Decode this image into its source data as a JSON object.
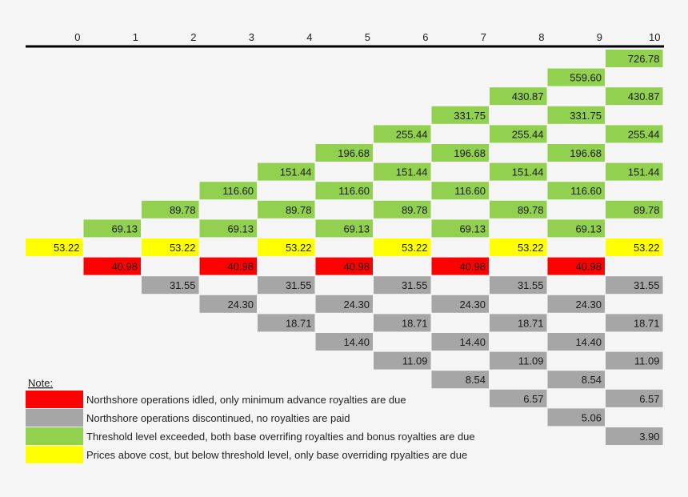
{
  "chart_data": {
    "type": "table",
    "periods": [
      0,
      1,
      2,
      3,
      4,
      5,
      6,
      7,
      8,
      9,
      10
    ],
    "colors": {
      "green": "#92d050",
      "yellow": "#ffff00",
      "red": "#ff0000",
      "gray": "#a6a6a6"
    },
    "rows": [
      {
        "cells": [
          {
            "period": 10,
            "value": "726.78",
            "status": "green"
          }
        ]
      },
      {
        "cells": [
          {
            "period": 9,
            "value": "559.60",
            "status": "green"
          }
        ]
      },
      {
        "cells": [
          {
            "period": 8,
            "value": "430.87",
            "status": "green"
          },
          {
            "period": 10,
            "value": "430.87",
            "status": "green"
          }
        ]
      },
      {
        "cells": [
          {
            "period": 7,
            "value": "331.75",
            "status": "green"
          },
          {
            "period": 9,
            "value": "331.75",
            "status": "green"
          }
        ]
      },
      {
        "cells": [
          {
            "period": 6,
            "value": "255.44",
            "status": "green"
          },
          {
            "period": 8,
            "value": "255.44",
            "status": "green"
          },
          {
            "period": 10,
            "value": "255.44",
            "status": "green"
          }
        ]
      },
      {
        "cells": [
          {
            "period": 5,
            "value": "196.68",
            "status": "green"
          },
          {
            "period": 7,
            "value": "196.68",
            "status": "green"
          },
          {
            "period": 9,
            "value": "196.68",
            "status": "green"
          }
        ]
      },
      {
        "cells": [
          {
            "period": 4,
            "value": "151.44",
            "status": "green"
          },
          {
            "period": 6,
            "value": "151.44",
            "status": "green"
          },
          {
            "period": 8,
            "value": "151.44",
            "status": "green"
          },
          {
            "period": 10,
            "value": "151.44",
            "status": "green"
          }
        ]
      },
      {
        "cells": [
          {
            "period": 3,
            "value": "116.60",
            "status": "green"
          },
          {
            "period": 5,
            "value": "116.60",
            "status": "green"
          },
          {
            "period": 7,
            "value": "116.60",
            "status": "green"
          },
          {
            "period": 9,
            "value": "116.60",
            "status": "green"
          }
        ]
      },
      {
        "cells": [
          {
            "period": 2,
            "value": "89.78",
            "status": "green"
          },
          {
            "period": 4,
            "value": "89.78",
            "status": "green"
          },
          {
            "period": 6,
            "value": "89.78",
            "status": "green"
          },
          {
            "period": 8,
            "value": "89.78",
            "status": "green"
          },
          {
            "period": 10,
            "value": "89.78",
            "status": "green"
          }
        ]
      },
      {
        "cells": [
          {
            "period": 1,
            "value": "69.13",
            "status": "green"
          },
          {
            "period": 3,
            "value": "69.13",
            "status": "green"
          },
          {
            "period": 5,
            "value": "69.13",
            "status": "green"
          },
          {
            "period": 7,
            "value": "69.13",
            "status": "green"
          },
          {
            "period": 9,
            "value": "69.13",
            "status": "green"
          }
        ]
      },
      {
        "cells": [
          {
            "period": 0,
            "value": "53.22",
            "status": "yellow"
          },
          {
            "period": 2,
            "value": "53.22",
            "status": "yellow"
          },
          {
            "period": 4,
            "value": "53.22",
            "status": "yellow"
          },
          {
            "period": 6,
            "value": "53.22",
            "status": "yellow"
          },
          {
            "period": 8,
            "value": "53.22",
            "status": "yellow"
          },
          {
            "period": 10,
            "value": "53.22",
            "status": "yellow"
          }
        ]
      },
      {
        "cells": [
          {
            "period": 1,
            "value": "40.98",
            "status": "red"
          },
          {
            "period": 3,
            "value": "40.98",
            "status": "red"
          },
          {
            "period": 5,
            "value": "40.98",
            "status": "red"
          },
          {
            "period": 7,
            "value": "40.98",
            "status": "red"
          },
          {
            "period": 9,
            "value": "40.98",
            "status": "red"
          }
        ]
      },
      {
        "cells": [
          {
            "period": 2,
            "value": "31.55",
            "status": "gray"
          },
          {
            "period": 4,
            "value": "31.55",
            "status": "gray"
          },
          {
            "period": 6,
            "value": "31.55",
            "status": "gray"
          },
          {
            "period": 8,
            "value": "31.55",
            "status": "gray"
          },
          {
            "period": 10,
            "value": "31.55",
            "status": "gray"
          }
        ]
      },
      {
        "cells": [
          {
            "period": 3,
            "value": "24.30",
            "status": "gray"
          },
          {
            "period": 5,
            "value": "24.30",
            "status": "gray"
          },
          {
            "period": 7,
            "value": "24.30",
            "status": "gray"
          },
          {
            "period": 9,
            "value": "24.30",
            "status": "gray"
          }
        ]
      },
      {
        "cells": [
          {
            "period": 4,
            "value": "18.71",
            "status": "gray"
          },
          {
            "period": 6,
            "value": "18.71",
            "status": "gray"
          },
          {
            "period": 8,
            "value": "18.71",
            "status": "gray"
          },
          {
            "period": 10,
            "value": "18.71",
            "status": "gray"
          }
        ]
      },
      {
        "cells": [
          {
            "period": 5,
            "value": "14.40",
            "status": "gray"
          },
          {
            "period": 7,
            "value": "14.40",
            "status": "gray"
          },
          {
            "period": 9,
            "value": "14.40",
            "status": "gray"
          }
        ]
      },
      {
        "cells": [
          {
            "period": 6,
            "value": "11.09",
            "status": "gray"
          },
          {
            "period": 8,
            "value": "11.09",
            "status": "gray"
          },
          {
            "period": 10,
            "value": "11.09",
            "status": "gray"
          }
        ]
      },
      {
        "cells": [
          {
            "period": 7,
            "value": "8.54",
            "status": "gray"
          },
          {
            "period": 9,
            "value": "8.54",
            "status": "gray"
          }
        ]
      },
      {
        "cells": [
          {
            "period": 8,
            "value": "6.57",
            "status": "gray"
          },
          {
            "period": 10,
            "value": "6.57",
            "status": "gray"
          }
        ]
      },
      {
        "cells": [
          {
            "period": 9,
            "value": "5.06",
            "status": "gray"
          }
        ]
      },
      {
        "cells": [
          {
            "period": 10,
            "value": "3.90",
            "status": "gray"
          }
        ]
      }
    ],
    "note": {
      "title": "Note:",
      "legend": [
        {
          "status": "red",
          "text": "Northshore operations idled, only minimum advance royalties are due"
        },
        {
          "status": "gray",
          "text": "Northshore operations discontinued, no royalties are paid"
        },
        {
          "status": "green",
          "text": "Threshold level exceeded, both base overrifing royalties and bonus royalties are due"
        },
        {
          "status": "yellow",
          "text": "Prices above cost, but below threshold level, only base overriding rpyalties are due"
        }
      ]
    }
  }
}
